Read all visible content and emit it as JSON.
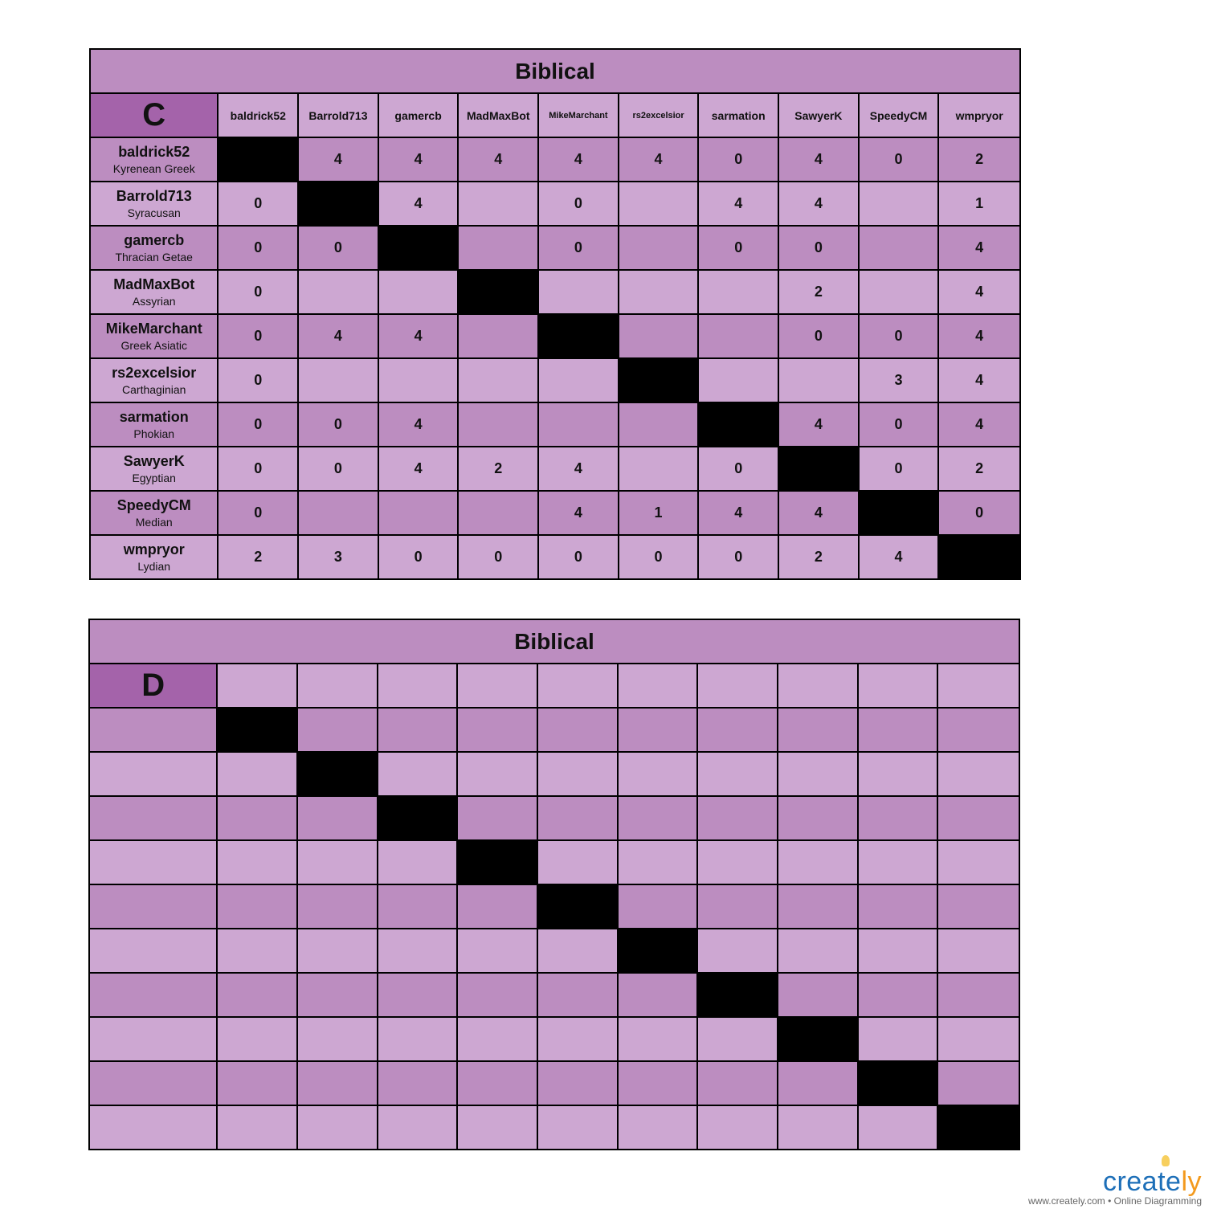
{
  "table_c": {
    "title": "Biblical",
    "corner": "C",
    "columns": [
      "baldrick52",
      "Barrold713",
      "gamercb",
      "MadMaxBot",
      "MikeMarchant",
      "rs2excelsior",
      "sarmation",
      "SawyerK",
      "SpeedyCM",
      "wmpryor"
    ],
    "rows": [
      {
        "name": "baldrick52",
        "civ": "Kyrenean Greek",
        "values": [
          null,
          "4",
          "4",
          "4",
          "4",
          "4",
          "0",
          "4",
          "0",
          "2"
        ]
      },
      {
        "name": "Barrold713",
        "civ": "Syracusan",
        "values": [
          "0",
          null,
          "4",
          "",
          "0",
          "",
          "4",
          "4",
          "",
          "1"
        ]
      },
      {
        "name": "gamercb",
        "civ": "Thracian Getae",
        "values": [
          "0",
          "0",
          null,
          "",
          "0",
          "",
          "0",
          "0",
          "",
          "4"
        ]
      },
      {
        "name": "MadMaxBot",
        "civ": "Assyrian",
        "values": [
          "0",
          "",
          "",
          null,
          "",
          "",
          "",
          "2",
          "",
          "4"
        ]
      },
      {
        "name": "MikeMarchant",
        "civ": "Greek Asiatic",
        "values": [
          "0",
          "4",
          "4",
          "",
          null,
          "",
          "",
          "0",
          "0",
          "4"
        ]
      },
      {
        "name": "rs2excelsior",
        "civ": "Carthaginian",
        "values": [
          "0",
          "",
          "",
          "",
          "",
          null,
          "",
          "",
          "3",
          "4"
        ]
      },
      {
        "name": "sarmation",
        "civ": "Phokian",
        "values": [
          "0",
          "0",
          "4",
          "",
          "",
          "",
          null,
          "4",
          "0",
          "4"
        ]
      },
      {
        "name": "SawyerK",
        "civ": "Egyptian",
        "values": [
          "0",
          "0",
          "4",
          "2",
          "4",
          "",
          "0",
          null,
          "0",
          "2"
        ]
      },
      {
        "name": "SpeedyCM",
        "civ": "Median",
        "values": [
          "0",
          "",
          "",
          "",
          "4",
          "1",
          "4",
          "4",
          null,
          "0"
        ]
      },
      {
        "name": "wmpryor",
        "civ": "Lydian",
        "values": [
          "2",
          "3",
          "0",
          "0",
          "0",
          "0",
          "0",
          "2",
          "4",
          null
        ]
      }
    ]
  },
  "table_d": {
    "title": "Biblical",
    "corner": "D",
    "size": 10
  },
  "colors": {
    "dark_row": "#BC8DC0",
    "light_row": "#CDA7D2",
    "corner": "#A463AA",
    "diagonal": "#000000"
  },
  "watermark": {
    "brand_main": "create",
    "brand_accent": "ly",
    "tagline": "www.creately.com • Online Diagramming"
  }
}
